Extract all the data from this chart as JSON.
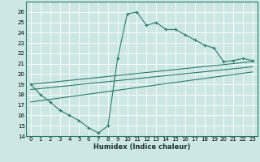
{
  "xlabel": "Humidex (Indice chaleur)",
  "bg_color": "#cde8e4",
  "grid_color": "#b0d8d2",
  "line_color": "#2a7a6a",
  "xlim": [
    -0.5,
    23.5
  ],
  "ylim": [
    14,
    27
  ],
  "yticks": [
    14,
    15,
    16,
    17,
    18,
    19,
    20,
    21,
    22,
    23,
    24,
    25,
    26
  ],
  "xticks": [
    0,
    1,
    2,
    3,
    4,
    5,
    6,
    7,
    8,
    9,
    10,
    11,
    12,
    13,
    14,
    15,
    16,
    17,
    18,
    19,
    20,
    21,
    22,
    23
  ],
  "curve1_x": [
    0,
    1,
    2,
    3,
    4,
    5,
    6,
    7,
    8,
    9,
    10,
    11,
    12,
    13,
    14,
    15,
    16,
    17,
    18,
    19,
    20,
    21,
    22,
    23
  ],
  "curve1_y": [
    19.0,
    18.0,
    17.3,
    16.5,
    16.0,
    15.5,
    14.8,
    14.3,
    15.0,
    21.5,
    25.8,
    26.0,
    24.7,
    25.0,
    24.3,
    24.3,
    23.8,
    23.3,
    22.8,
    22.5,
    21.2,
    21.3,
    21.5,
    21.3
  ],
  "line1_x": [
    0,
    23
  ],
  "line1_y": [
    19.0,
    21.2
  ],
  "line2_x": [
    0,
    23
  ],
  "line2_y": [
    18.5,
    20.7
  ],
  "line3_x": [
    0,
    23
  ],
  "line3_y": [
    17.3,
    20.2
  ]
}
